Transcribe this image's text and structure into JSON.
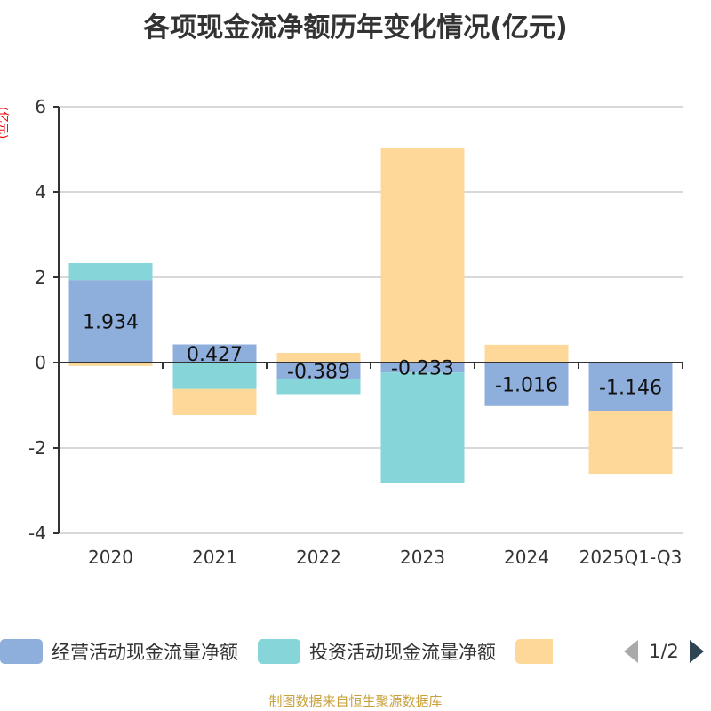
{
  "chart_data": {
    "type": "bar",
    "stacked": true,
    "title": "各项现金流净额历年变化情况(亿元)",
    "ylabel": "(亿元)",
    "ylim": [
      -4,
      6
    ],
    "yticks": [
      -4,
      -2,
      0,
      2,
      4,
      6
    ],
    "grid": true,
    "categories": [
      "2020",
      "2021",
      "2022",
      "2023",
      "2024",
      "2025Q1-Q3"
    ],
    "series": [
      {
        "name": "经营活动现金流量净额",
        "color": "#8eaedb",
        "values": [
          1.934,
          0.427,
          -0.389,
          -0.233,
          -1.016,
          -1.146
        ],
        "labels": [
          "1.934",
          "0.427",
          "-0.389",
          "-0.233",
          "-1.016",
          "-1.146"
        ]
      },
      {
        "name": "投资活动现金流量净额",
        "color": "#86d5d8",
        "values": [
          0.4,
          -0.62,
          -0.35,
          -2.58,
          0,
          0
        ]
      },
      {
        "name": "",
        "color": "#fed898",
        "values": [
          -0.08,
          -0.61,
          0.23,
          5.04,
          0.42,
          -1.46
        ]
      }
    ],
    "legend_position": "bottom",
    "legend_page": "1/2"
  },
  "source": "制图数据来自恒生聚源数据库"
}
